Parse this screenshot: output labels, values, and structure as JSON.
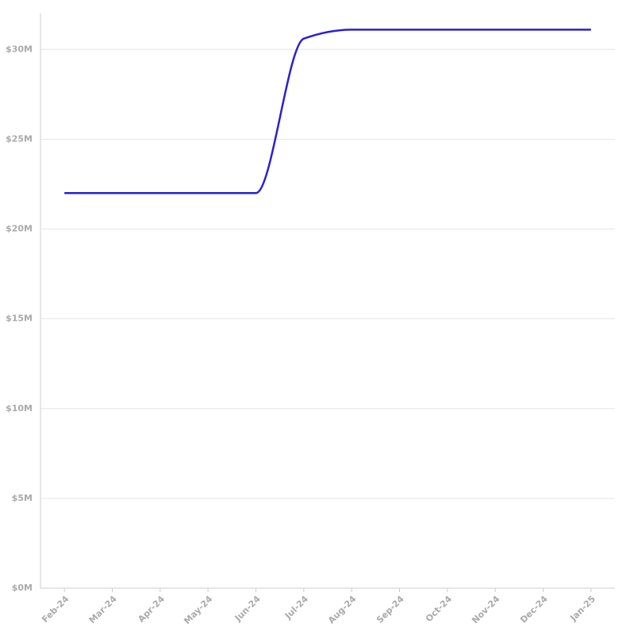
{
  "chart_data": {
    "type": "line",
    "categories": [
      "Feb-24",
      "Mar-24",
      "Apr-24",
      "May-24",
      "Jun-24",
      "Jul-24",
      "Aug-24",
      "Sep-24",
      "Oct-24",
      "Nov-24",
      "Dec-24",
      "Jan-25"
    ],
    "series": [
      {
        "color": "#2a1fd6",
        "values": [
          22000000,
          22000000,
          22000000,
          22000000,
          22000000,
          30600000,
          31100000,
          31100000,
          31100000,
          31100000,
          31100000,
          31100000
        ]
      }
    ],
    "ylim": [
      0,
      32000000
    ],
    "yticks": [
      {
        "value": 0,
        "label": "$0M"
      },
      {
        "value": 5000000,
        "label": "$5M"
      },
      {
        "value": 10000000,
        "label": "$10M"
      },
      {
        "value": 15000000,
        "label": "$15M"
      },
      {
        "value": 20000000,
        "label": "$20M"
      },
      {
        "value": 25000000,
        "label": "$25M"
      },
      {
        "value": 30000000,
        "label": "$30M"
      }
    ],
    "grid": true
  }
}
